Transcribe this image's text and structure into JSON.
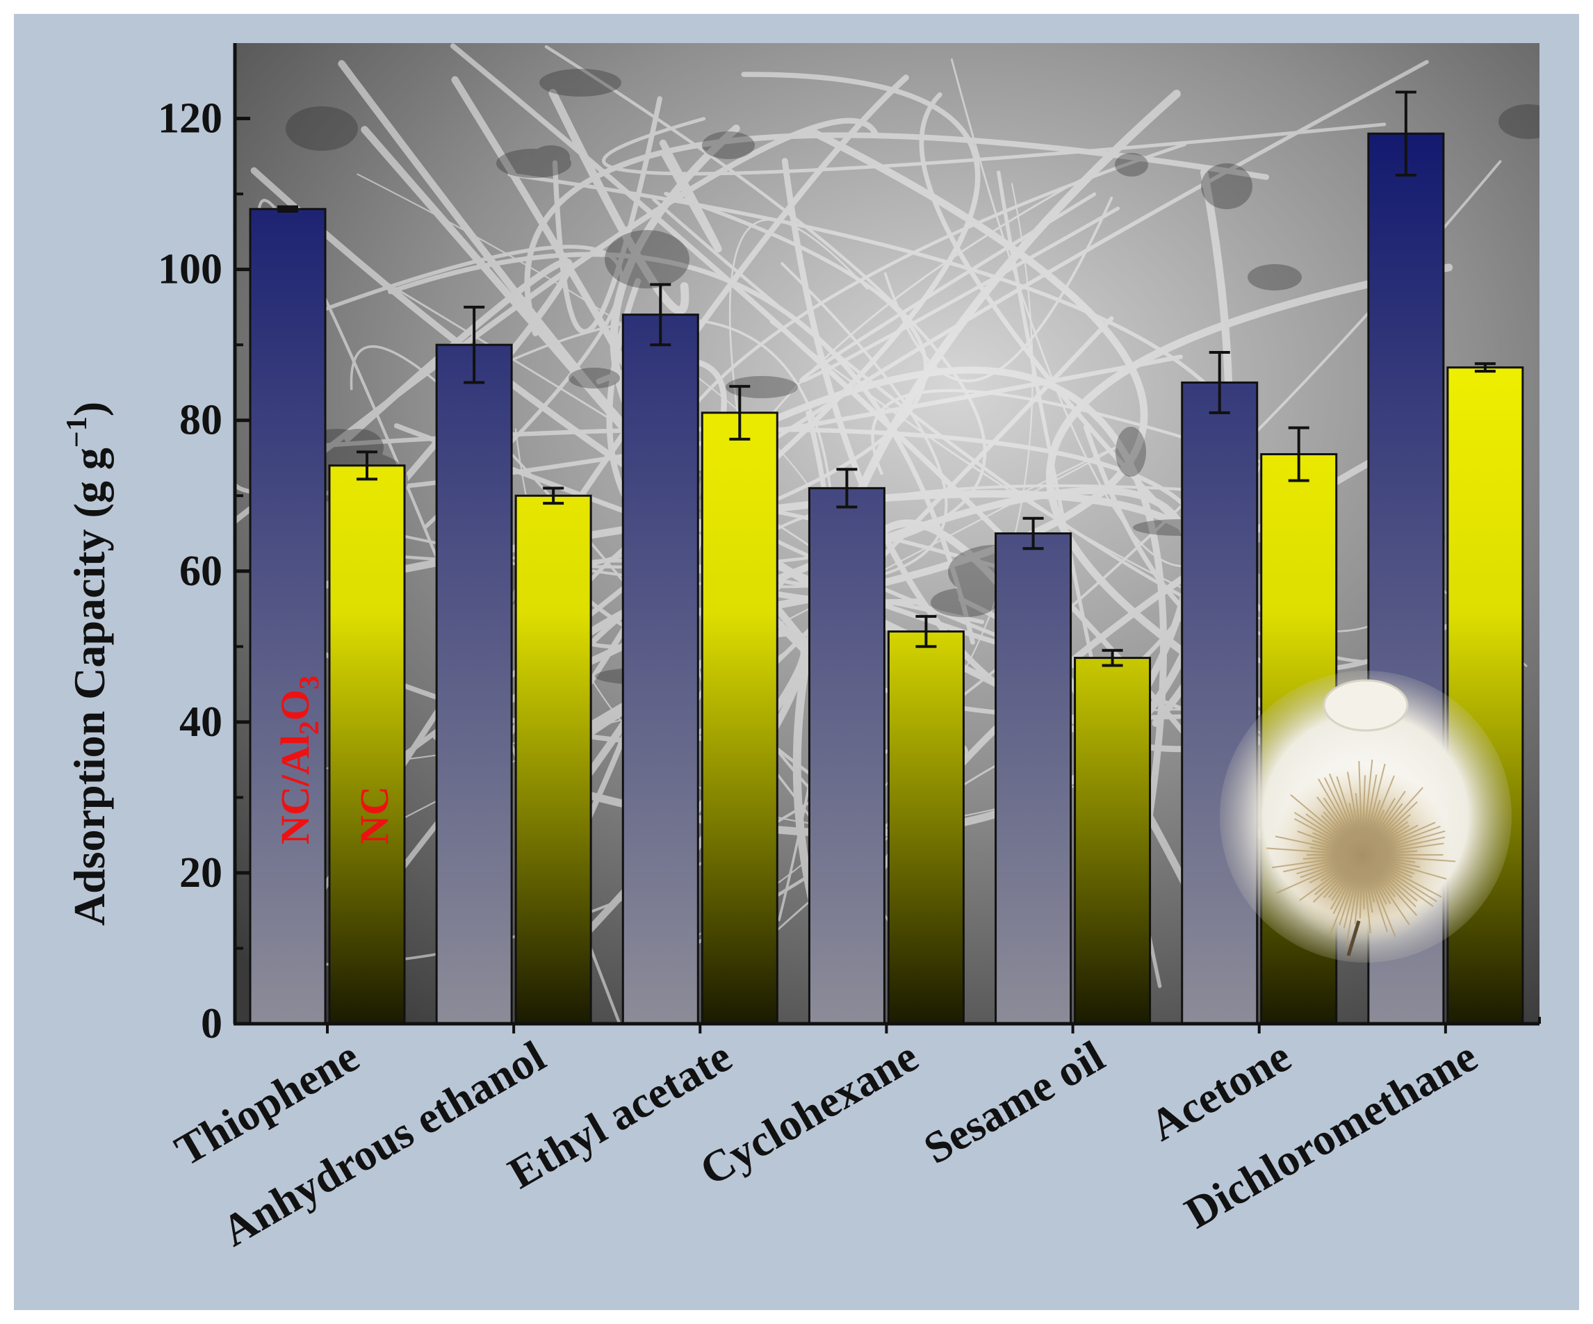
{
  "chart_data": {
    "type": "bar",
    "title": "",
    "xlabel": "",
    "ylabel": "Adsorption Capacity (g g",
    "ylabel_superscript": "−1",
    "ylabel_close": ")",
    "ylim": [
      0,
      130
    ],
    "yticks": [
      0,
      20,
      40,
      60,
      80,
      100,
      120
    ],
    "categories": [
      "Thiophene",
      "Anhydrous ethanol",
      "Ethyl acetate",
      "Cyclohexane",
      "Sesame oil",
      "Acetone",
      "Dichloromethane"
    ],
    "series": [
      {
        "name": "NC/Al2O3",
        "label_parts": [
          "NC/Al",
          "2",
          "O",
          "3"
        ],
        "values": [
          108,
          90,
          94,
          71,
          65,
          85,
          118
        ],
        "errors": [
          0.3,
          5,
          4,
          2.5,
          2,
          4,
          5.5
        ]
      },
      {
        "name": "NC",
        "label_parts": [
          "NC"
        ],
        "values": [
          74,
          70,
          81,
          52,
          48.5,
          75.5,
          87
        ],
        "errors": [
          1.8,
          1,
          3.5,
          2,
          1,
          3.5,
          0.5
        ]
      }
    ],
    "grid": false,
    "legend": "inside first bars, vertical red text",
    "colors": {
      "series1_top": "#10176e",
      "series1_bottom": "#8c8c98",
      "series2_top": "#ffff00",
      "series2_bottom": "#1a1a00",
      "series_label": "#ee1111",
      "panel_border": "#b9c6d6"
    }
  }
}
